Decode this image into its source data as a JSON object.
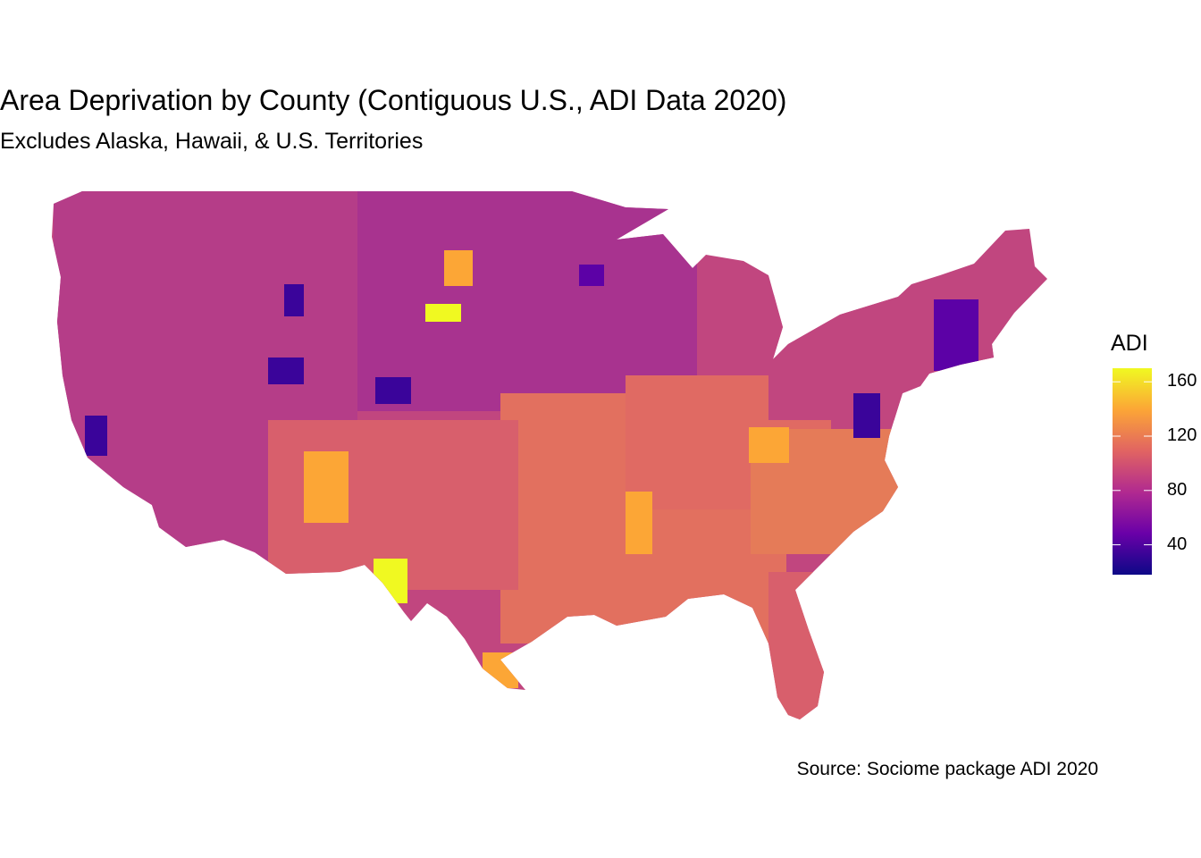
{
  "header": {
    "title": "Area Deprivation by County (Contiguous U.S., ADI Data 2020)",
    "subtitle": "Excludes Alaska, Hawaii, & U.S. Territories"
  },
  "caption": "Source: Sociome package ADI 2020",
  "legend": {
    "title": "ADI",
    "min": 18,
    "max": 170,
    "ticks": [
      {
        "value": 160,
        "label": "160"
      },
      {
        "value": 120,
        "label": "120"
      },
      {
        "value": 80,
        "label": "80"
      },
      {
        "value": 40,
        "label": "40"
      }
    ],
    "palette": [
      "#0d0887",
      "#6a00a8",
      "#b12a90",
      "#e16462",
      "#fca636",
      "#f0f921"
    ]
  },
  "map": {
    "region": "contiguous-us",
    "fill_scale": "plasma"
  }
}
